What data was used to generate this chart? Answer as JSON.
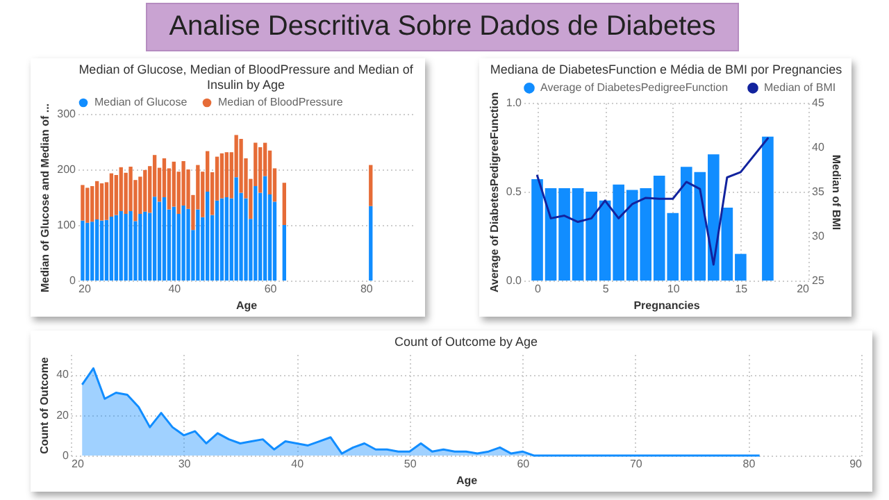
{
  "chart_data": [
    {
      "type": "other",
      "title": "Analise Descritiva Sobre Dados de Diabetes"
    },
    {
      "type": "bar",
      "title": "Median of Glucose, Median of BloodPressure and Median of Insulin by Age",
      "xlabel": "Age",
      "ylabel": "Median of Glucose and Median of ...",
      "stacked": true,
      "legend": "top left",
      "grid": "y",
      "x": [
        21,
        22,
        23,
        24,
        25,
        26,
        27,
        28,
        29,
        30,
        31,
        32,
        33,
        34,
        35,
        36,
        37,
        38,
        39,
        40,
        41,
        42,
        43,
        44,
        45,
        46,
        47,
        48,
        49,
        50,
        51,
        52,
        53,
        54,
        55,
        56,
        57,
        58,
        59,
        60,
        61,
        63,
        81
      ],
      "xlim": [
        20,
        90
      ],
      "xticks": [
        20,
        40,
        60,
        80
      ],
      "ylim": [
        0,
        300
      ],
      "yticks": [
        0,
        100,
        200,
        300
      ],
      "series": [
        {
          "name": "Median of Glucose",
          "color": "#118dff",
          "values": [
            108,
            104,
            106,
            110,
            108,
            109,
            115,
            118,
            125,
            120,
            125,
            107,
            120,
            124,
            122,
            151,
            142,
            150,
            128,
            133,
            120,
            135,
            129,
            91,
            128,
            114,
            160,
            118,
            144,
            148,
            150,
            148,
            186,
            158,
            148,
            111,
            170,
            158,
            188,
            155,
            142,
            100,
            134
          ]
        },
        {
          "name": "Median of BloodPressure",
          "color": "#e66c37",
          "values": [
            64,
            63,
            64,
            69,
            67,
            68,
            78,
            72,
            79,
            74,
            80,
            74,
            67,
            75,
            84,
            75,
            61,
            70,
            74,
            81,
            76,
            80,
            71,
            63,
            80,
            82,
            73,
            77,
            79,
            81,
            81,
            83,
            76,
            97,
            72,
            72,
            78,
            82,
            60,
            79,
            60,
            76,
            74
          ]
        }
      ]
    },
    {
      "type": "bar",
      "title": "Mediana de DiabetesFunction e Média de BMI por Pregnancies",
      "xlabel": "Pregnancies",
      "ylabel": "Average of DiabetesPedigreeFunction",
      "y2label": "Median of BMI",
      "legend": "top left",
      "grid": true,
      "x": [
        0,
        1,
        2,
        3,
        4,
        5,
        6,
        7,
        8,
        9,
        10,
        11,
        12,
        13,
        14,
        15,
        17
      ],
      "xlim": [
        -1,
        20
      ],
      "xticks": [
        0,
        5,
        10,
        15,
        20
      ],
      "ylim": [
        0,
        1
      ],
      "yticks": [
        {
          "value": 0,
          "label": "0.0"
        },
        {
          "value": 0.5,
          "label": "0.5"
        },
        {
          "value": 1,
          "label": "1.0"
        }
      ],
      "y2lim": [
        25,
        45
      ],
      "y2ticks": [
        25,
        30,
        35,
        40,
        45
      ],
      "series": [
        {
          "name": "Average of DiabetesPedigreeFunction",
          "type": "bar",
          "color": "#118dff",
          "values": [
            0.57,
            0.52,
            0.52,
            0.52,
            0.5,
            0.45,
            0.54,
            0.51,
            0.52,
            0.59,
            0.38,
            0.64,
            0.61,
            0.71,
            0.41,
            0.15,
            0.81
          ]
        },
        {
          "name": "Median of BMI",
          "type": "line",
          "axis": "y2",
          "color": "#12239e",
          "values": [
            36.8,
            32.0,
            32.3,
            31.6,
            32.0,
            34.0,
            32.0,
            33.6,
            34.3,
            34.2,
            34.2,
            36.1,
            35.3,
            26.8,
            36.6,
            37.2,
            41.0
          ]
        }
      ]
    },
    {
      "type": "area",
      "title": "Count of Outcome by Age",
      "xlabel": "Age",
      "ylabel": "Count of Outcome",
      "grid": true,
      "x": [
        21,
        22,
        23,
        24,
        25,
        26,
        27,
        28,
        29,
        30,
        31,
        32,
        33,
        34,
        35,
        36,
        37,
        38,
        39,
        40,
        41,
        42,
        43,
        44,
        45,
        46,
        47,
        48,
        49,
        50,
        51,
        52,
        53,
        54,
        55,
        56,
        57,
        58,
        59,
        60,
        61,
        81
      ],
      "xlim": [
        20,
        90
      ],
      "xticks": [
        20,
        30,
        40,
        50,
        60,
        70,
        80,
        90
      ],
      "ylim": [
        0,
        50
      ],
      "yticks": [
        0,
        20,
        40
      ],
      "series": [
        {
          "color": "#118dff",
          "values": [
            35,
            43,
            28,
            31,
            30,
            24,
            14,
            21,
            14,
            10,
            12,
            6,
            11,
            8,
            6,
            7,
            8,
            3,
            7,
            6,
            5,
            7,
            9,
            1,
            4,
            6,
            3,
            3,
            2,
            2,
            6,
            2,
            3,
            2,
            2,
            1,
            2,
            4,
            1,
            2,
            0,
            0
          ]
        }
      ]
    }
  ]
}
